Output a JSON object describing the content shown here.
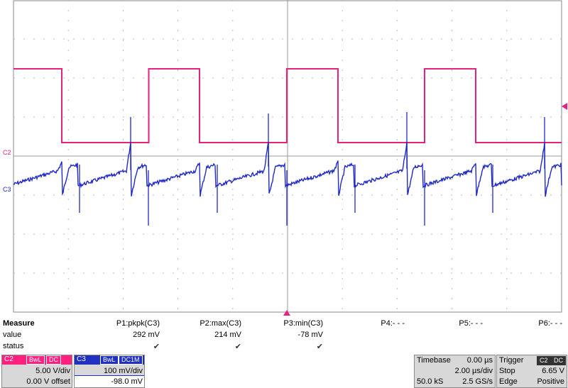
{
  "markers": {
    "c2_label": "C2",
    "c3_label": "C3"
  },
  "measure": {
    "heading": "Measure",
    "row_value_label": "value",
    "row_status_label": "status",
    "params": [
      {
        "name": "P1:pkpk(C3)",
        "value": "292 mV",
        "status": "✔"
      },
      {
        "name": "P2:max(C3)",
        "value": "214 mV",
        "status": "✔"
      },
      {
        "name": "P3:min(C3)",
        "value": "-78 mV",
        "status": "✔"
      },
      {
        "name": "P4:- - -",
        "value": "",
        "status": ""
      },
      {
        "name": "P5:- - -",
        "value": "",
        "status": ""
      },
      {
        "name": "P6:- - -",
        "value": "",
        "status": ""
      }
    ]
  },
  "channels": {
    "c2": {
      "name": "C2",
      "tags": [
        "BwL",
        "DC"
      ],
      "vdiv": "5.00 V/div",
      "offset": "0.00 V offset",
      "color": "#e8207e"
    },
    "c3": {
      "name": "C3",
      "tags": [
        "BwL",
        "DC1M"
      ],
      "vdiv": "100 mV/div",
      "offset": "-98.0 mV",
      "color": "#1f29c8"
    }
  },
  "timebase": {
    "label": "Timebase",
    "delay": "0.00 µs",
    "tdiv": "2.00 µs/div",
    "samples": "50.0 kS",
    "rate": "2.5 GS/s"
  },
  "trigger": {
    "label": "Trigger",
    "tags": [
      "C2",
      "DC"
    ],
    "mode": "Stop",
    "level": "6.65 V",
    "type": "Edge",
    "slope": "Positive"
  }
}
